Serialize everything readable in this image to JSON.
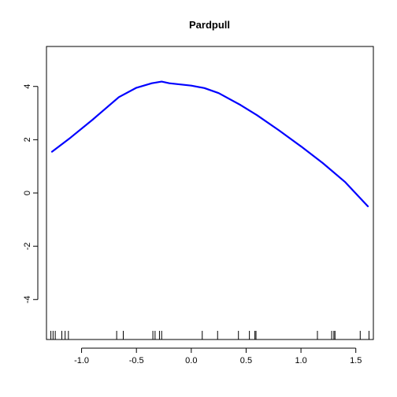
{
  "chart_data": {
    "type": "line",
    "title": "Pardpull",
    "xlabel": "",
    "ylabel": "",
    "xlim": [
      -1.32,
      1.66
    ],
    "ylim": [
      -5.5,
      5.5
    ],
    "x_ticks": [
      -1.0,
      -0.5,
      0.0,
      0.5,
      1.0,
      1.5
    ],
    "x_tick_labels": [
      "-1.0",
      "-0.5",
      "0.0",
      "0.5",
      "1.0",
      "1.5"
    ],
    "y_ticks": [
      -4,
      -2,
      0,
      2,
      4
    ],
    "y_tick_labels": [
      "-4",
      "-2",
      "0",
      "2",
      "4"
    ],
    "grid": false,
    "series": [
      {
        "color": "#0000ff",
        "x": [
          -1.27,
          -1.1,
          -0.9,
          -0.66,
          -0.5,
          -0.36,
          -0.27,
          -0.2,
          0.0,
          0.12,
          0.25,
          0.45,
          0.6,
          0.8,
          1.0,
          1.2,
          1.4,
          1.61
        ],
        "y": [
          1.55,
          2.08,
          2.75,
          3.6,
          3.95,
          4.12,
          4.18,
          4.12,
          4.03,
          3.94,
          3.75,
          3.3,
          2.92,
          2.35,
          1.75,
          1.12,
          0.42,
          -0.5
        ]
      }
    ],
    "rug_x": [
      -1.28,
      -1.26,
      -1.24,
      -1.18,
      -1.15,
      -1.12,
      -0.68,
      -0.62,
      -0.35,
      -0.33,
      -0.29,
      -0.27,
      0.1,
      0.24,
      0.43,
      0.53,
      0.58,
      0.59,
      1.15,
      1.28,
      1.3,
      1.31,
      1.54,
      1.62
    ]
  }
}
